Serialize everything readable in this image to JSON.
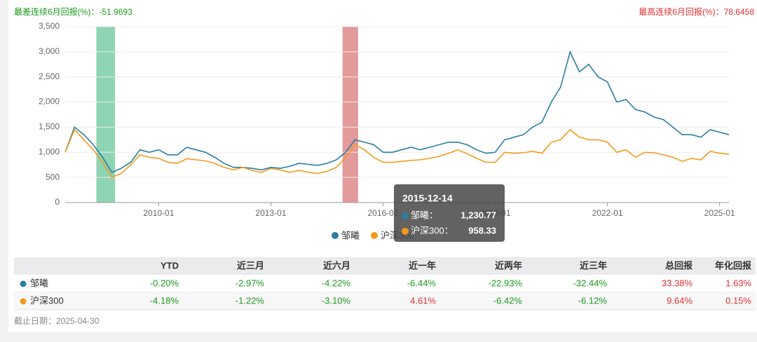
{
  "chart_data": {
    "type": "line",
    "annotations": {
      "worst": "最差连续6月回报(%)：-51.9693",
      "best": "最高连续6月回报(%)：78.6458"
    },
    "x": [
      "2007-07",
      "2007-10",
      "2008-01",
      "2008-04",
      "2008-07",
      "2008-10",
      "2009-01",
      "2009-04",
      "2009-07",
      "2009-10",
      "2010-01",
      "2010-04",
      "2010-07",
      "2010-10",
      "2011-01",
      "2011-04",
      "2011-07",
      "2011-10",
      "2012-01",
      "2012-04",
      "2012-07",
      "2012-10",
      "2013-01",
      "2013-04",
      "2013-07",
      "2013-10",
      "2014-01",
      "2014-04",
      "2014-07",
      "2014-10",
      "2015-01",
      "2015-04",
      "2015-07",
      "2015-10",
      "2016-01",
      "2016-04",
      "2016-07",
      "2016-10",
      "2017-01",
      "2017-04",
      "2017-07",
      "2017-10",
      "2018-01",
      "2018-04",
      "2018-07",
      "2018-10",
      "2019-01",
      "2019-04",
      "2019-07",
      "2019-10",
      "2020-01",
      "2020-04",
      "2020-07",
      "2020-10",
      "2021-01",
      "2021-04",
      "2021-07",
      "2021-10",
      "2022-01",
      "2022-04",
      "2022-07",
      "2022-10",
      "2023-01",
      "2023-04",
      "2023-07",
      "2023-10",
      "2024-01",
      "2024-04",
      "2024-07",
      "2024-10",
      "2025-01",
      "2025-04"
    ],
    "series": [
      {
        "name": "邹曦",
        "color": "#2b7ea1",
        "values": [
          1000,
          1500,
          1350,
          1150,
          900,
          600,
          680,
          800,
          1050,
          1000,
          1050,
          950,
          950,
          1100,
          1050,
          1000,
          900,
          780,
          700,
          700,
          680,
          650,
          700,
          680,
          720,
          780,
          760,
          740,
          780,
          850,
          1000,
          1250,
          1200,
          1150,
          1000,
          1000,
          1050,
          1100,
          1050,
          1100,
          1150,
          1200,
          1200,
          1150,
          1050,
          980,
          1000,
          1250,
          1300,
          1350,
          1500,
          1600,
          2000,
          2300,
          3000,
          2600,
          2750,
          2500,
          2400,
          2000,
          2050,
          1850,
          1800,
          1700,
          1650,
          1500,
          1350,
          1350,
          1300,
          1450,
          1400,
          1350
        ]
      },
      {
        "name": "沪深300",
        "color": "#f39a1e",
        "values": [
          1000,
          1450,
          1250,
          1050,
          800,
          500,
          580,
          750,
          950,
          900,
          880,
          800,
          780,
          870,
          850,
          830,
          780,
          700,
          650,
          700,
          640,
          600,
          680,
          650,
          600,
          640,
          600,
          580,
          620,
          700,
          900,
          1150,
          1050,
          900,
          800,
          800,
          820,
          840,
          850,
          880,
          920,
          980,
          1050,
          970,
          880,
          800,
          800,
          1000,
          980,
          990,
          1020,
          980,
          1200,
          1250,
          1450,
          1300,
          1250,
          1250,
          1200,
          1000,
          1050,
          900,
          1000,
          990,
          950,
          900,
          820,
          880,
          850,
          1020,
          980,
          960
        ]
      }
    ],
    "highlights": [
      {
        "from": "2008-05",
        "to": "2008-11",
        "color": "#8fd5b3"
      },
      {
        "from": "2014-12",
        "to": "2015-05",
        "color": "#e39a9a"
      }
    ],
    "xlim": [
      "2007-07",
      "2025-04"
    ],
    "xticks": [
      "2010-01",
      "2013-01",
      "2016-01",
      "2019-01",
      "2022-01",
      "2025-01"
    ],
    "ylim": [
      0,
      3500
    ],
    "yticks": [
      0,
      500,
      {
        "value": 1000,
        "label": "1,000"
      },
      {
        "value": 1500,
        "label": "1,500"
      },
      {
        "value": 2000,
        "label": "2,000"
      },
      {
        "value": 2500,
        "label": "2,500"
      },
      {
        "value": 3000,
        "label": "3,000"
      },
      {
        "value": 3500,
        "label": "3,500"
      }
    ],
    "grid": true,
    "tooltip": {
      "date": "2015-12-14",
      "rows": [
        {
          "name": "邹曦：",
          "value": 1230.77,
          "label": "1,230.77"
        },
        {
          "name": "沪深300：",
          "value": 958.33,
          "label": "958.33"
        }
      ]
    }
  },
  "table": {
    "header": [
      "YTD",
      "近三月",
      "近六月",
      "近一年",
      "近两年",
      "近三年",
      "总回报",
      "年化回报"
    ],
    "rows": [
      [
        "邹曦",
        "-0.20%",
        "-2.97%",
        "-4.22%",
        "-6.44%",
        "-22.93%",
        "-32.44%",
        "33.38%",
        "1.63%"
      ],
      [
        "沪深300",
        "-4.18%",
        "-1.22%",
        "-3.10%",
        "4.61%",
        "-6.42%",
        "-6.12%",
        "9.64%",
        "0.15%"
      ]
    ]
  },
  "footer": "截止日期：2025-04-30"
}
